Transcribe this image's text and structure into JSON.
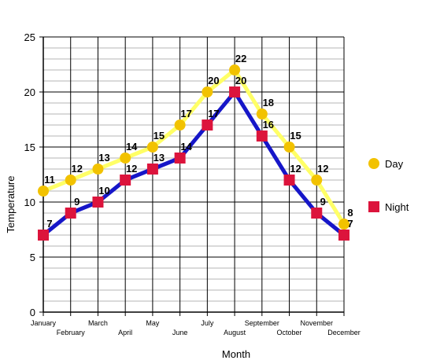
{
  "chart_data": {
    "type": "line",
    "title": "",
    "xlabel": "Month",
    "ylabel": "Temperature",
    "ylim": [
      0,
      25
    ],
    "yticks": [
      0,
      5,
      10,
      15,
      20,
      25
    ],
    "minor_grid_step": 1,
    "grid": true,
    "legend_position": "right",
    "categories": [
      "January",
      "February",
      "March",
      "April",
      "May",
      "June",
      "July",
      "August",
      "September",
      "October",
      "November",
      "December"
    ],
    "series": [
      {
        "name": "Day",
        "values": [
          11,
          12,
          13,
          14,
          15,
          17,
          20,
          22,
          18,
          15,
          12,
          8
        ],
        "line_color": "#ffff66",
        "marker_color": "#f2c200",
        "marker": "circle"
      },
      {
        "name": "Night",
        "values": [
          7,
          9,
          10,
          12,
          13,
          14,
          17,
          20,
          16,
          12,
          9,
          7
        ],
        "line_color": "#1616c8",
        "marker_color": "#dc143c",
        "marker": "square"
      }
    ]
  }
}
